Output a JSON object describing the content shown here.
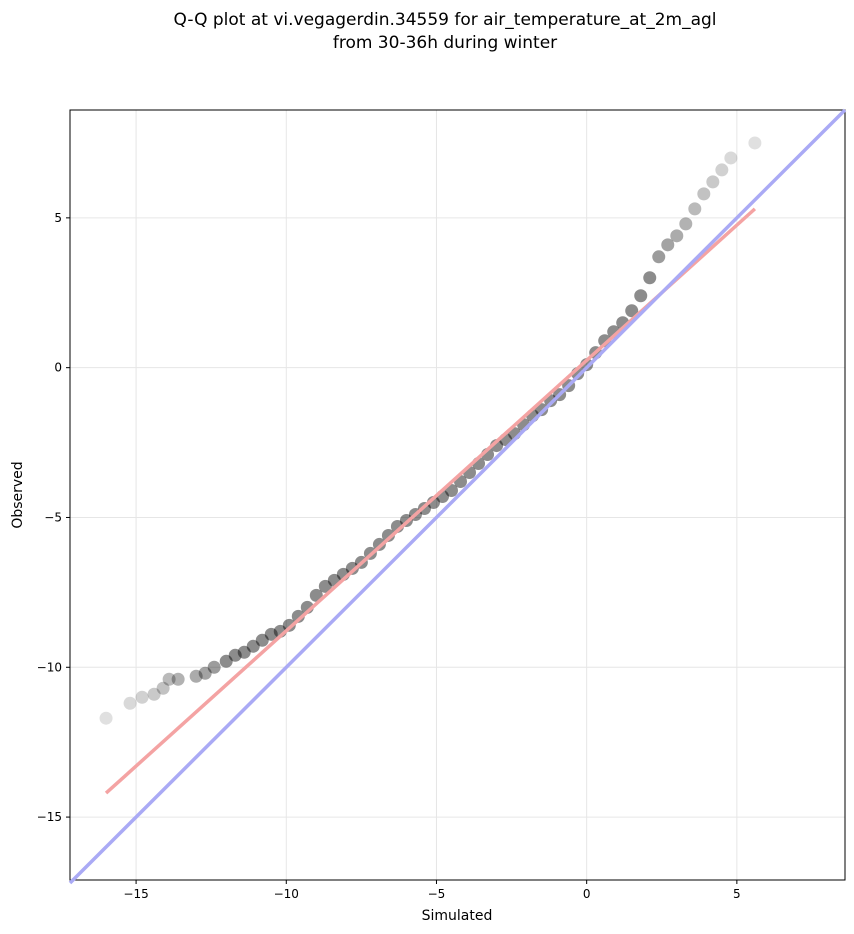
{
  "chart_data": {
    "type": "scatter",
    "title_lines": [
      "Q-Q plot at vi.vegagerdin.34559 for air_temperature_at_2m_agl",
      "from 30-36h during winter"
    ],
    "xlabel": "Simulated",
    "ylabel": "Observed",
    "xlim": [
      -17.2,
      8.6
    ],
    "ylim": [
      -17.1,
      8.6
    ],
    "xticks": [
      -15,
      -10,
      -5,
      0,
      5
    ],
    "yticks": [
      -15,
      -10,
      -5,
      0,
      5
    ],
    "xtick_labels": [
      "−15",
      "−10",
      "−5",
      "0",
      "5"
    ],
    "ytick_labels": [
      "−15",
      "−10",
      "−5",
      "0",
      "5"
    ],
    "grid": true,
    "series": [
      {
        "kind": "points",
        "color": "#000000",
        "x": [
          -16.0,
          -15.2,
          -14.8,
          -14.4,
          -14.1,
          -13.9,
          -13.6,
          -13.0,
          -12.7,
          -12.4,
          -12.0,
          -11.7,
          -11.4,
          -11.1,
          -10.8,
          -10.5,
          -10.2,
          -9.9,
          -9.6,
          -9.3,
          -9.0,
          -8.7,
          -8.4,
          -8.1,
          -7.8,
          -7.5,
          -7.2,
          -6.9,
          -6.6,
          -6.3,
          -6.0,
          -5.7,
          -5.4,
          -5.1,
          -4.8,
          -4.5,
          -4.2,
          -3.9,
          -3.6,
          -3.3,
          -3.0,
          -2.7,
          -2.4,
          -2.1,
          -1.8,
          -1.5,
          -1.2,
          -0.9,
          -0.6,
          -0.3,
          0.0,
          0.3,
          0.6,
          0.9,
          1.2,
          1.5,
          1.8,
          2.1,
          2.4,
          2.7,
          3.0,
          3.3,
          3.6,
          3.9,
          4.2,
          4.5,
          4.8,
          5.6
        ],
        "y": [
          -11.7,
          -11.2,
          -11.0,
          -10.9,
          -10.7,
          -10.4,
          -10.4,
          -10.3,
          -10.2,
          -10.0,
          -9.8,
          -9.6,
          -9.5,
          -9.3,
          -9.1,
          -8.9,
          -8.8,
          -8.6,
          -8.3,
          -8.0,
          -7.6,
          -7.3,
          -7.1,
          -6.9,
          -6.7,
          -6.5,
          -6.2,
          -5.9,
          -5.6,
          -5.3,
          -5.1,
          -4.9,
          -4.7,
          -4.5,
          -4.3,
          -4.1,
          -3.8,
          -3.5,
          -3.2,
          -2.9,
          -2.6,
          -2.4,
          -2.2,
          -1.9,
          -1.6,
          -1.4,
          -1.1,
          -0.9,
          -0.6,
          -0.2,
          0.1,
          0.5,
          0.9,
          1.2,
          1.5,
          1.9,
          2.4,
          3.0,
          3.7,
          4.1,
          4.4,
          4.8,
          5.3,
          5.8,
          6.2,
          6.6,
          7.0,
          7.5
        ]
      },
      {
        "kind": "line",
        "color": "#f4a3a3",
        "x": [
          -16.0,
          5.6
        ],
        "y": [
          -14.2,
          5.3
        ]
      },
      {
        "kind": "line",
        "color": "#aaaaf5",
        "x": [
          -17.2,
          8.6
        ],
        "y": [
          -17.2,
          8.6
        ]
      }
    ]
  }
}
